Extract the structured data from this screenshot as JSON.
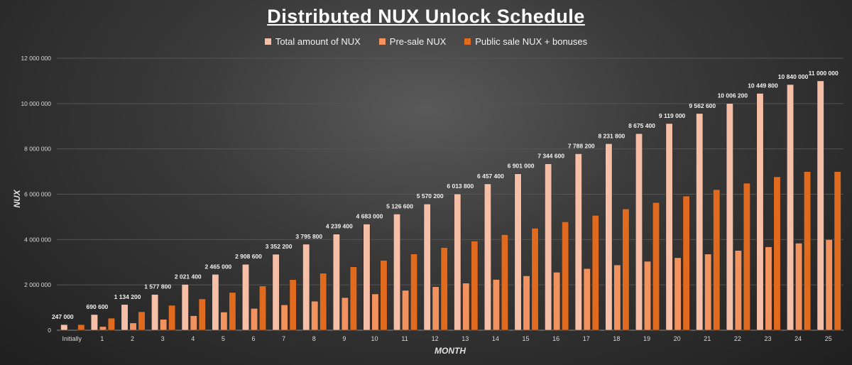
{
  "chart_data": {
    "type": "bar",
    "title": "Distributed NUX Unlock Schedule",
    "xlabel": "MONTH",
    "ylabel": "NUX",
    "ylim": [
      0,
      12000000
    ],
    "yticks": [
      0,
      2000000,
      4000000,
      6000000,
      8000000,
      10000000,
      12000000
    ],
    "ytick_labels": [
      "0",
      "2 000 000",
      "4 000 000",
      "6 000 000",
      "8 000 000",
      "10 000 000",
      "12 000 000"
    ],
    "grid": true,
    "legend_position": "top",
    "categories": [
      "Initially",
      "1",
      "2",
      "3",
      "4",
      "5",
      "6",
      "7",
      "8",
      "9",
      "10",
      "11",
      "12",
      "13",
      "14",
      "15",
      "16",
      "17",
      "18",
      "19",
      "20",
      "21",
      "22",
      "23",
      "24",
      "25"
    ],
    "series": [
      {
        "name": "Total amount of NUX",
        "color": "#f6c0a8",
        "values": [
          247000,
          690600,
          1134200,
          1577800,
          2021400,
          2465000,
          2908600,
          3352200,
          3795800,
          4239400,
          4683000,
          5126600,
          5570200,
          6013800,
          6457400,
          6901000,
          7344600,
          7788200,
          8231800,
          8675400,
          9119000,
          9562600,
          10006200,
          10449800,
          10840000,
          11000000
        ],
        "labels": [
          "247 000",
          "690 600",
          "1 134 200",
          "1 577 800",
          "2 021 400",
          "2 465 000",
          "2 908 600",
          "3 352 200",
          "3 795 800",
          "4 239 400",
          "4 683 000",
          "5 126 600",
          "5 570 200",
          "6 013 800",
          "6 457 400",
          "6 901 000",
          "7 344 600",
          "7 788 200",
          "8 231 800",
          "8 675 400",
          "9 119 000",
          "9 562 600",
          "10 006 200",
          "10 449 800",
          "10 840 000",
          "11 000 000"
        ]
      },
      {
        "name": "Pre-sale NUX",
        "color": "#f2925e",
        "values": [
          0,
          160000,
          320000,
          480000,
          640000,
          800000,
          960000,
          1120000,
          1280000,
          1440000,
          1600000,
          1760000,
          1920000,
          2080000,
          2240000,
          2400000,
          2560000,
          2720000,
          2880000,
          3040000,
          3200000,
          3360000,
          3520000,
          3680000,
          3840000,
          4000000
        ]
      },
      {
        "name": "Public sale NUX + bonuses",
        "color": "#e06a1e",
        "values": [
          247000,
          530600,
          814200,
          1097800,
          1381400,
          1665000,
          1948600,
          2232200,
          2515800,
          2799400,
          3083000,
          3366600,
          3650200,
          3933800,
          4217400,
          4501000,
          4784600,
          5068200,
          5351800,
          5635400,
          5919000,
          6202600,
          6486200,
          6769800,
          7000000,
          7000000
        ]
      }
    ]
  }
}
